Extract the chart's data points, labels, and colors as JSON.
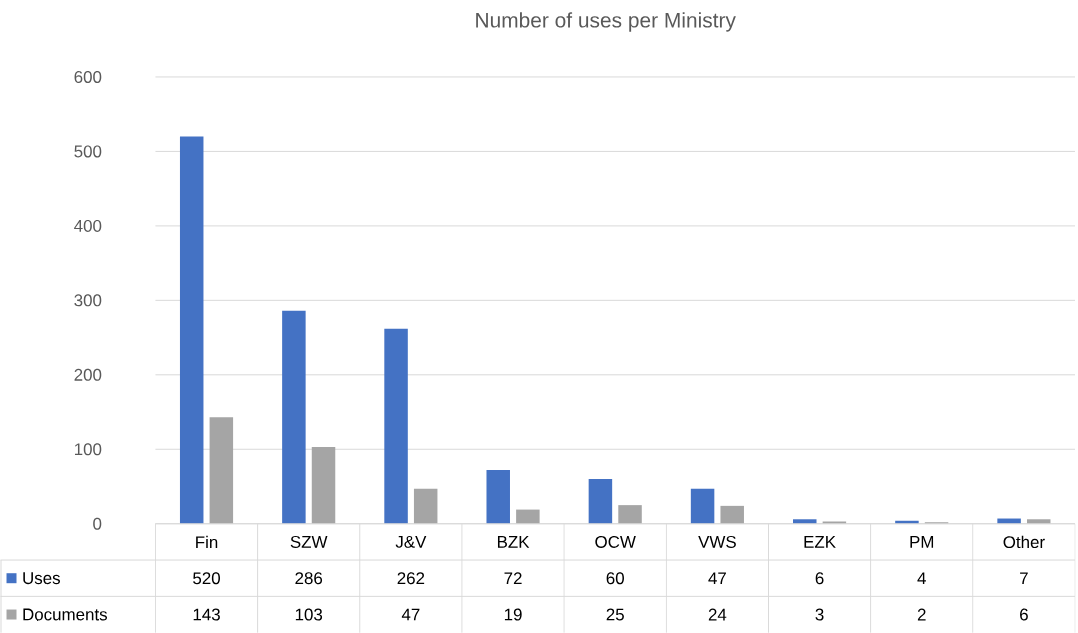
{
  "chart_data": {
    "type": "bar",
    "title": "Number of uses per Ministry",
    "categories": [
      "Fin",
      "SZW",
      "J&V",
      "BZK",
      "OCW",
      "VWS",
      "EZK",
      "PM",
      "Other"
    ],
    "series": [
      {
        "name": "Uses",
        "color": "#4472c4",
        "values": [
          520,
          286,
          262,
          72,
          60,
          47,
          6,
          4,
          7
        ]
      },
      {
        "name": "Documents",
        "color": "#a5a5a5",
        "values": [
          143,
          103,
          47,
          19,
          25,
          24,
          3,
          2,
          6
        ]
      }
    ],
    "ylim": [
      0,
      600
    ],
    "yticks": [
      0,
      100,
      200,
      300,
      400,
      500,
      600
    ],
    "grid": "y",
    "data_labels": true,
    "legend": "bottom"
  }
}
